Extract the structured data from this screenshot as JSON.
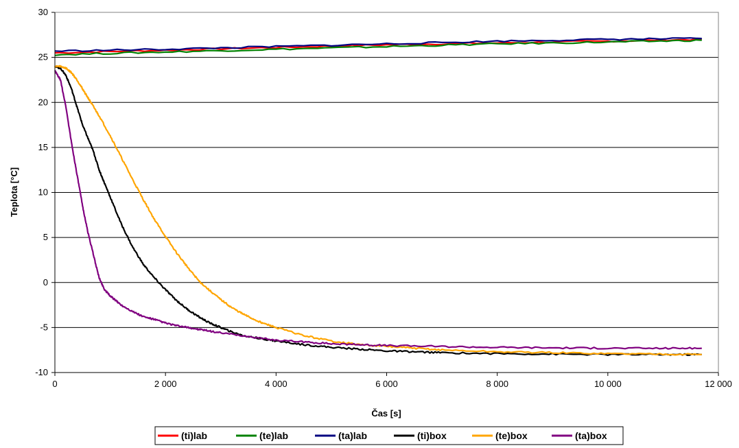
{
  "chart_data": {
    "type": "line",
    "xlabel": "Čas [s]",
    "ylabel": "Teplota [°C]",
    "xlim": [
      0,
      12000
    ],
    "ylim": [
      -10,
      30
    ],
    "x_ticks": [
      0,
      2000,
      4000,
      6000,
      8000,
      10000,
      12000
    ],
    "x_tick_labels": [
      "0",
      "2 000",
      "4 000",
      "6 000",
      "8 000",
      "10 000",
      "12 000"
    ],
    "y_ticks": [
      -10,
      -5,
      0,
      5,
      10,
      15,
      20,
      25,
      30
    ],
    "y_tick_labels": [
      "-10",
      "-5",
      "0",
      "5",
      "10",
      "15",
      "20",
      "25",
      "30"
    ],
    "grid": "horizontal",
    "legend_position": "bottom",
    "series": [
      {
        "name": "(ti)lab",
        "color": "#ff0000",
        "x": [
          0,
          2000,
          4000,
          6000,
          8000,
          10000,
          11700
        ],
        "y": [
          25.5,
          25.8,
          26.1,
          26.4,
          26.6,
          26.8,
          27.0
        ]
      },
      {
        "name": "(te)lab",
        "color": "#008000",
        "x": [
          0,
          2000,
          4000,
          6000,
          8000,
          10000,
          11700
        ],
        "y": [
          25.3,
          25.6,
          25.9,
          26.2,
          26.5,
          26.7,
          26.9
        ]
      },
      {
        "name": "(ta)lab",
        "color": "#000080",
        "x": [
          0,
          2000,
          4000,
          6000,
          8000,
          10000,
          11700
        ],
        "y": [
          25.7,
          25.9,
          26.2,
          26.5,
          26.8,
          27.0,
          27.1
        ]
      },
      {
        "name": "(ti)box",
        "color": "#000000",
        "x": [
          0,
          100,
          200,
          300,
          400,
          500,
          600,
          700,
          800,
          900,
          1000,
          1200,
          1400,
          1600,
          1800,
          2000,
          2200,
          2400,
          2600,
          2800,
          3000,
          3200,
          3400,
          3600,
          3800,
          4000,
          4500,
          5000,
          5500,
          6000,
          6500,
          7000,
          8000,
          9000,
          10000,
          11000,
          11700
        ],
        "y": [
          24.0,
          23.8,
          23.0,
          21.5,
          19.5,
          17.5,
          16.0,
          14.5,
          12.5,
          11.0,
          9.5,
          6.5,
          4.0,
          2.0,
          0.5,
          -0.8,
          -2.0,
          -3.0,
          -3.8,
          -4.5,
          -5.0,
          -5.5,
          -5.9,
          -6.1,
          -6.3,
          -6.5,
          -6.9,
          -7.2,
          -7.4,
          -7.6,
          -7.7,
          -7.8,
          -7.9,
          -7.95,
          -8.0,
          -8.0,
          -8.0
        ]
      },
      {
        "name": "(te)box",
        "color": "#ffa500",
        "x": [
          0,
          100,
          200,
          300,
          400,
          500,
          600,
          700,
          800,
          1000,
          1200,
          1400,
          1600,
          1800,
          2000,
          2200,
          2400,
          2600,
          2800,
          3000,
          3200,
          3400,
          3600,
          3800,
          4000,
          4500,
          5000,
          5500,
          6000,
          6500,
          7000,
          8000,
          9000,
          10000,
          11000,
          11700
        ],
        "y": [
          24.0,
          24.0,
          23.8,
          23.3,
          22.5,
          21.5,
          20.5,
          19.5,
          18.5,
          16.3,
          13.9,
          11.5,
          9.2,
          7.0,
          5.1,
          3.3,
          1.7,
          0.2,
          -0.9,
          -1.9,
          -2.8,
          -3.5,
          -4.1,
          -4.6,
          -5.0,
          -5.9,
          -6.5,
          -6.9,
          -7.1,
          -7.3,
          -7.5,
          -7.7,
          -7.8,
          -7.9,
          -7.95,
          -8.0
        ]
      },
      {
        "name": "(ta)box",
        "color": "#800080",
        "x": [
          0,
          100,
          200,
          300,
          400,
          500,
          600,
          700,
          800,
          900,
          1000,
          1100,
          1200,
          1400,
          1600,
          1800,
          2000,
          2200,
          2400,
          2600,
          2800,
          3000,
          3500,
          4000,
          4500,
          5000,
          5500,
          6000,
          7000,
          8000,
          9000,
          10000,
          11000,
          11700
        ],
        "y": [
          23.5,
          22.5,
          19.5,
          15.5,
          12.0,
          8.5,
          5.5,
          3.0,
          0.5,
          -0.8,
          -1.5,
          -2.0,
          -2.5,
          -3.2,
          -3.8,
          -4.1,
          -4.5,
          -4.8,
          -5.0,
          -5.2,
          -5.4,
          -5.6,
          -6.0,
          -6.4,
          -6.6,
          -6.8,
          -6.9,
          -7.0,
          -7.1,
          -7.2,
          -7.25,
          -7.3,
          -7.3,
          -7.3
        ]
      }
    ]
  }
}
